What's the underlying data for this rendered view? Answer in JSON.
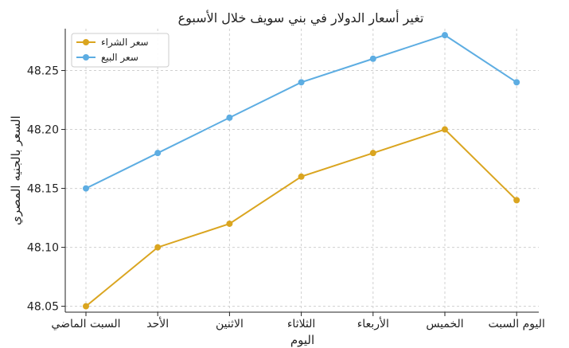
{
  "chart_data": {
    "type": "line",
    "title": "تغير أسعار الدولار في بني سويف خلال الأسبوع",
    "xlabel": "اليوم",
    "ylabel": "السعر بالجنيه المصري",
    "categories": [
      "السبت الماضي",
      "الأحد",
      "الاثنين",
      "الثلاثاء",
      "الأربعاء",
      "الخميس",
      "اليوم السبت"
    ],
    "series": [
      {
        "name": "سعر الشراء",
        "color": "#DAA520",
        "values": [
          48.05,
          48.1,
          48.12,
          48.16,
          48.18,
          48.2,
          48.14
        ]
      },
      {
        "name": "سعر البيع",
        "color": "#5DADE2",
        "values": [
          48.15,
          48.18,
          48.21,
          48.24,
          48.26,
          48.28,
          48.24
        ]
      }
    ],
    "yticks": [
      "48.05",
      "48.10",
      "48.15",
      "48.20",
      "48.25"
    ],
    "ylim": [
      48.045,
      48.2855
    ],
    "grid": true,
    "legend": "top-left"
  }
}
